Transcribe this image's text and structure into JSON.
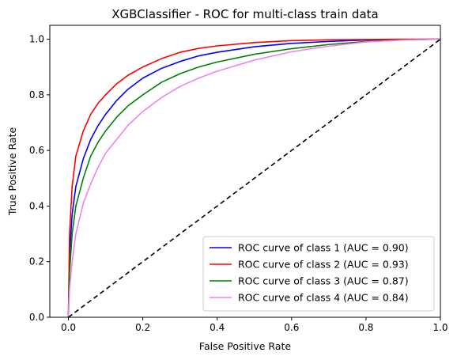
{
  "chart_data": {
    "type": "line",
    "title": "XGBClassifier - ROC for multi-class train data",
    "xlabel": "False Positive Rate",
    "ylabel": "True Positive Rate",
    "xlim": [
      -0.05,
      1.0
    ],
    "ylim": [
      0.0,
      1.05
    ],
    "xticks": [
      "0.0",
      "0.2",
      "0.4",
      "0.6",
      "0.8",
      "1.0"
    ],
    "yticks": [
      "0.0",
      "0.2",
      "0.4",
      "0.6",
      "0.8",
      "1.0"
    ],
    "grid": false,
    "legend_position": "lower-right",
    "series": [
      {
        "name": "ROC curve of class 1 (AUC = 0.90)",
        "color": "#0000ff",
        "style": "solid",
        "x": [
          0,
          0.003,
          0.01,
          0.02,
          0.04,
          0.06,
          0.08,
          0.1,
          0.13,
          0.16,
          0.2,
          0.25,
          0.3,
          0.35,
          0.4,
          0.5,
          0.6,
          0.7,
          0.8,
          0.9,
          1.0
        ],
        "y": [
          0,
          0.22,
          0.37,
          0.47,
          0.57,
          0.64,
          0.69,
          0.73,
          0.78,
          0.82,
          0.86,
          0.895,
          0.92,
          0.94,
          0.953,
          0.973,
          0.985,
          0.992,
          0.997,
          0.999,
          1.0
        ]
      },
      {
        "name": "ROC curve of class 2 (AUC = 0.93)",
        "color": "#ff0000",
        "style": "solid",
        "x": [
          0,
          0.003,
          0.01,
          0.02,
          0.04,
          0.06,
          0.08,
          0.1,
          0.13,
          0.16,
          0.2,
          0.25,
          0.3,
          0.35,
          0.4,
          0.5,
          0.6,
          0.7,
          0.8,
          0.9,
          1.0
        ],
        "y": [
          0,
          0.3,
          0.47,
          0.58,
          0.67,
          0.73,
          0.77,
          0.8,
          0.84,
          0.87,
          0.9,
          0.93,
          0.953,
          0.967,
          0.976,
          0.988,
          0.995,
          0.998,
          0.999,
          1.0,
          1.0
        ]
      },
      {
        "name": "ROC curve of class 3 (AUC = 0.87)",
        "color": "#008000",
        "style": "solid",
        "x": [
          0,
          0.003,
          0.01,
          0.02,
          0.04,
          0.06,
          0.08,
          0.1,
          0.13,
          0.16,
          0.2,
          0.25,
          0.3,
          0.35,
          0.4,
          0.5,
          0.6,
          0.7,
          0.8,
          0.9,
          1.0
        ],
        "y": [
          0,
          0.16,
          0.3,
          0.4,
          0.5,
          0.58,
          0.63,
          0.67,
          0.72,
          0.76,
          0.8,
          0.845,
          0.876,
          0.9,
          0.918,
          0.946,
          0.966,
          0.981,
          0.992,
          0.998,
          1.0
        ]
      },
      {
        "name": "ROC curve of class 4 (AUC = 0.84)",
        "color": "#ee82ee",
        "style": "solid",
        "x": [
          0,
          0.003,
          0.01,
          0.02,
          0.04,
          0.06,
          0.08,
          0.1,
          0.13,
          0.16,
          0.2,
          0.25,
          0.3,
          0.35,
          0.4,
          0.5,
          0.6,
          0.7,
          0.8,
          0.9,
          1.0
        ],
        "y": [
          0,
          0.1,
          0.2,
          0.3,
          0.41,
          0.48,
          0.54,
          0.59,
          0.64,
          0.69,
          0.74,
          0.79,
          0.83,
          0.86,
          0.885,
          0.925,
          0.955,
          0.975,
          0.99,
          0.997,
          1.0
        ]
      },
      {
        "name": "",
        "color": "#000000",
        "style": "dashed",
        "x": [
          0,
          1
        ],
        "y": [
          0,
          1
        ]
      }
    ]
  }
}
